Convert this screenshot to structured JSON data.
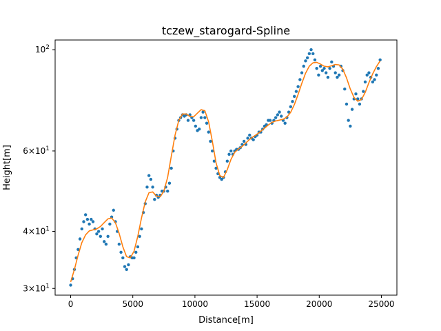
{
  "chart_data": {
    "type": "scatter",
    "title": "tczew_starogard-Spline",
    "xlabel": "Distance[m]",
    "ylabel": "Height[m]",
    "xlim": [
      -1250,
      26250
    ],
    "ylim": [
      29,
      105
    ],
    "y_scale": "log",
    "grid": false,
    "legend": "none",
    "x_ticks": [
      {
        "value": 0,
        "label": "0"
      },
      {
        "value": 5000,
        "label": "5000"
      },
      {
        "value": 10000,
        "label": "10000"
      },
      {
        "value": 15000,
        "label": "15000"
      },
      {
        "value": 20000,
        "label": "20000"
      },
      {
        "value": 25000,
        "label": "25000"
      }
    ],
    "y_ticks": [
      {
        "value": 30,
        "base": "3",
        "mult": "×10",
        "exp": "1"
      },
      {
        "value": 40,
        "base": "4",
        "mult": "×10",
        "exp": "1"
      },
      {
        "value": 60,
        "base": "6",
        "mult": "×10",
        "exp": "1"
      },
      {
        "value": 100,
        "base": "10",
        "mult": "",
        "exp": "2"
      }
    ],
    "series": [
      {
        "kind": "scatter",
        "color": "#1f77b4",
        "points": [
          [
            0,
            30.5
          ],
          [
            150,
            31.5
          ],
          [
            300,
            33
          ],
          [
            450,
            35
          ],
          [
            600,
            36.5
          ],
          [
            750,
            38.5
          ],
          [
            900,
            40.5
          ],
          [
            1050,
            42
          ],
          [
            1200,
            43.5
          ],
          [
            1350,
            42.5
          ],
          [
            1500,
            41.5
          ],
          [
            1650,
            42.5
          ],
          [
            1800,
            42
          ],
          [
            1950,
            40.5
          ],
          [
            2100,
            39.5
          ],
          [
            2250,
            40
          ],
          [
            2400,
            39
          ],
          [
            2550,
            40.5
          ],
          [
            2700,
            38
          ],
          [
            2850,
            37.5
          ],
          [
            3000,
            39
          ],
          [
            3150,
            41.5
          ],
          [
            3300,
            43
          ],
          [
            3450,
            44.5
          ],
          [
            3600,
            42
          ],
          [
            3750,
            40
          ],
          [
            3900,
            37.5
          ],
          [
            4050,
            36
          ],
          [
            4200,
            35
          ],
          [
            4350,
            33.5
          ],
          [
            4500,
            33
          ],
          [
            4650,
            33.8
          ],
          [
            4800,
            35.2
          ],
          [
            4950,
            35
          ],
          [
            5100,
            35
          ],
          [
            5250,
            36
          ],
          [
            5400,
            37
          ],
          [
            5550,
            39
          ],
          [
            5700,
            40.5
          ],
          [
            5850,
            44
          ],
          [
            6000,
            46
          ],
          [
            6150,
            50
          ],
          [
            6300,
            53
          ],
          [
            6450,
            52
          ],
          [
            6600,
            50
          ],
          [
            6750,
            47
          ],
          [
            6900,
            48
          ],
          [
            7050,
            47.5
          ],
          [
            7200,
            48
          ],
          [
            7350,
            49
          ],
          [
            7500,
            49
          ],
          [
            7650,
            50
          ],
          [
            7800,
            49
          ],
          [
            7950,
            51
          ],
          [
            8100,
            55
          ],
          [
            8250,
            60
          ],
          [
            8400,
            64
          ],
          [
            8550,
            67
          ],
          [
            8700,
            70
          ],
          [
            8850,
            71
          ],
          [
            9000,
            72
          ],
          [
            9150,
            71.5
          ],
          [
            9300,
            72
          ],
          [
            9450,
            70
          ],
          [
            9600,
            72
          ],
          [
            9750,
            71
          ],
          [
            9900,
            70
          ],
          [
            10050,
            68
          ],
          [
            10200,
            66.5
          ],
          [
            10350,
            67
          ],
          [
            10500,
            71
          ],
          [
            10650,
            73
          ],
          [
            10800,
            71
          ],
          [
            10950,
            69
          ],
          [
            11100,
            66
          ],
          [
            11250,
            63
          ],
          [
            11400,
            60
          ],
          [
            11550,
            57
          ],
          [
            11700,
            55
          ],
          [
            11850,
            53.5
          ],
          [
            12000,
            52.5
          ],
          [
            12150,
            52
          ],
          [
            12300,
            52.5
          ],
          [
            12450,
            54
          ],
          [
            12600,
            57
          ],
          [
            12750,
            59
          ],
          [
            12900,
            60
          ],
          [
            13050,
            59
          ],
          [
            13200,
            60
          ],
          [
            13350,
            60.5
          ],
          [
            13500,
            60.5
          ],
          [
            13650,
            61
          ],
          [
            13800,
            62
          ],
          [
            13950,
            63
          ],
          [
            14100,
            62
          ],
          [
            14250,
            64
          ],
          [
            14400,
            65
          ],
          [
            14550,
            64
          ],
          [
            14700,
            63.5
          ],
          [
            14850,
            64.5
          ],
          [
            15000,
            65
          ],
          [
            15150,
            66
          ],
          [
            15300,
            66
          ],
          [
            15450,
            67
          ],
          [
            15600,
            68
          ],
          [
            15750,
            68.5
          ],
          [
            15900,
            70
          ],
          [
            16050,
            70
          ],
          [
            16200,
            69
          ],
          [
            16350,
            70
          ],
          [
            16500,
            71
          ],
          [
            16650,
            72
          ],
          [
            16800,
            73
          ],
          [
            16950,
            71.5
          ],
          [
            17100,
            70
          ],
          [
            17250,
            69
          ],
          [
            17400,
            71
          ],
          [
            17550,
            73
          ],
          [
            17700,
            75
          ],
          [
            17850,
            77
          ],
          [
            18000,
            79
          ],
          [
            18150,
            81
          ],
          [
            18300,
            83
          ],
          [
            18450,
            86
          ],
          [
            18600,
            89
          ],
          [
            18750,
            92
          ],
          [
            18900,
            94.5
          ],
          [
            19050,
            96
          ],
          [
            19200,
            98
          ],
          [
            19350,
            100
          ],
          [
            19500,
            98
          ],
          [
            19650,
            95
          ],
          [
            19800,
            91
          ],
          [
            19950,
            88
          ],
          [
            20100,
            92
          ],
          [
            20250,
            90
          ],
          [
            20400,
            91
          ],
          [
            20550,
            89
          ],
          [
            20700,
            87
          ],
          [
            20850,
            91
          ],
          [
            21000,
            94
          ],
          [
            21150,
            92
          ],
          [
            21300,
            89
          ],
          [
            21450,
            87
          ],
          [
            21600,
            88
          ],
          [
            21750,
            92
          ],
          [
            21900,
            90
          ],
          [
            22050,
            82
          ],
          [
            22200,
            76
          ],
          [
            22350,
            70
          ],
          [
            22500,
            68
          ],
          [
            22650,
            74
          ],
          [
            22800,
            78
          ],
          [
            22950,
            80
          ],
          [
            23100,
            78
          ],
          [
            23250,
            76
          ],
          [
            23400,
            78
          ],
          [
            23550,
            81
          ],
          [
            23700,
            85
          ],
          [
            23850,
            88
          ],
          [
            24000,
            89
          ],
          [
            24150,
            87
          ],
          [
            24300,
            85
          ],
          [
            24450,
            86
          ],
          [
            24600,
            88
          ],
          [
            24750,
            91
          ],
          [
            24900,
            95
          ]
        ]
      },
      {
        "kind": "line",
        "color": "#ff7f0e",
        "points": [
          [
            0,
            31
          ],
          [
            300,
            33
          ],
          [
            600,
            35.5
          ],
          [
            900,
            37.8
          ],
          [
            1200,
            39.3
          ],
          [
            1500,
            40.1
          ],
          [
            1800,
            40.3
          ],
          [
            2100,
            40.5
          ],
          [
            2400,
            41
          ],
          [
            2700,
            41.8
          ],
          [
            3000,
            42.6
          ],
          [
            3300,
            42.8
          ],
          [
            3600,
            41.8
          ],
          [
            3900,
            39.6
          ],
          [
            4200,
            37
          ],
          [
            4500,
            35.2
          ],
          [
            4800,
            35
          ],
          [
            5100,
            36.2
          ],
          [
            5400,
            39
          ],
          [
            5700,
            42.8
          ],
          [
            6000,
            46.4
          ],
          [
            6300,
            48.6
          ],
          [
            6600,
            48.8
          ],
          [
            6900,
            47.8
          ],
          [
            7200,
            47.6
          ],
          [
            7500,
            49
          ],
          [
            7800,
            52.5
          ],
          [
            8100,
            58.5
          ],
          [
            8400,
            65
          ],
          [
            8700,
            70
          ],
          [
            9000,
            72.3
          ],
          [
            9300,
            72.3
          ],
          [
            9600,
            71.4
          ],
          [
            9900,
            71.3
          ],
          [
            10200,
            72.6
          ],
          [
            10500,
            73.9
          ],
          [
            10800,
            73.5
          ],
          [
            11100,
            69.5
          ],
          [
            11400,
            63
          ],
          [
            11700,
            56.5
          ],
          [
            12000,
            53
          ],
          [
            12300,
            52.5
          ],
          [
            12600,
            54.6
          ],
          [
            12900,
            57.5
          ],
          [
            13200,
            59.6
          ],
          [
            13500,
            60.6
          ],
          [
            13800,
            61.4
          ],
          [
            14100,
            62.5
          ],
          [
            14400,
            63.6
          ],
          [
            14700,
            64.5
          ],
          [
            15000,
            65.3
          ],
          [
            15300,
            66.3
          ],
          [
            15600,
            67.3
          ],
          [
            15900,
            68.4
          ],
          [
            16200,
            69.3
          ],
          [
            16500,
            69.8
          ],
          [
            16800,
            70.1
          ],
          [
            17100,
            70.4
          ],
          [
            17400,
            71.2
          ],
          [
            17700,
            72.9
          ],
          [
            18000,
            75.8
          ],
          [
            18300,
            79.8
          ],
          [
            18600,
            84.4
          ],
          [
            18900,
            88.8
          ],
          [
            19200,
            92
          ],
          [
            19500,
            93.6
          ],
          [
            19800,
            93.8
          ],
          [
            20100,
            93
          ],
          [
            20400,
            92
          ],
          [
            20700,
            91.7
          ],
          [
            21000,
            92.2
          ],
          [
            21300,
            92.8
          ],
          [
            21600,
            92.6
          ],
          [
            21900,
            90.6
          ],
          [
            22200,
            86.7
          ],
          [
            22500,
            82
          ],
          [
            22800,
            78.6
          ],
          [
            23100,
            77.1
          ],
          [
            23400,
            77.8
          ],
          [
            23700,
            80.6
          ],
          [
            24000,
            84.7
          ],
          [
            24300,
            88.5
          ],
          [
            24600,
            91.8
          ],
          [
            24900,
            94.5
          ]
        ]
      }
    ]
  }
}
